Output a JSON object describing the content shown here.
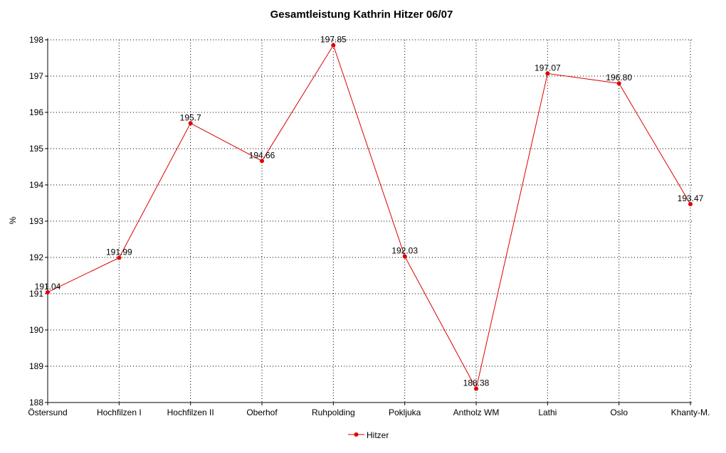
{
  "chart_data": {
    "type": "line",
    "title": "Gesamtleistung Kathrin Hitzer 06/07",
    "xlabel": "",
    "ylabel": "%",
    "ylim": [
      188,
      198
    ],
    "yticks": [
      188,
      189,
      190,
      191,
      192,
      193,
      194,
      195,
      196,
      197,
      198
    ],
    "grid": true,
    "legend_position": "bottom-center",
    "categories": [
      "Östersund",
      "Hochfilzen I",
      "Hochfilzen II",
      "Oberhof",
      "Ruhpolding",
      "Pokljuka",
      "Antholz WM",
      "Lathi",
      "Oslo",
      "Khanty-M."
    ],
    "series": [
      {
        "name": "Hitzer",
        "color": "#dd0000",
        "values": [
          191.04,
          191.99,
          195.7,
          194.66,
          197.85,
          192.03,
          188.38,
          197.07,
          196.8,
          193.47
        ],
        "labels": [
          "191.04",
          "191.99",
          "195.7",
          "194.66",
          "197.85",
          "192.03",
          "188.38",
          "197.07",
          "196.80",
          "193.47"
        ]
      }
    ]
  }
}
